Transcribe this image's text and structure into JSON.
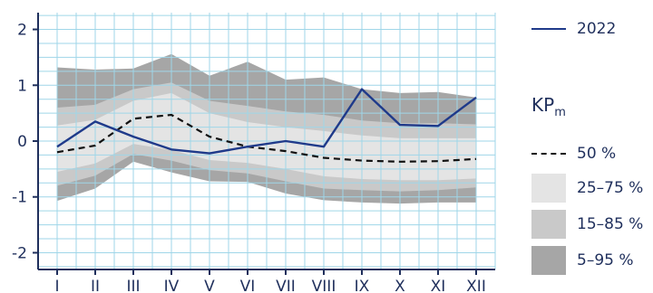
{
  "chart_data": {
    "type": "area",
    "categories": [
      "I",
      "II",
      "III",
      "IV",
      "V",
      "VI",
      "VII",
      "VIII",
      "IX",
      "X",
      "XI",
      "XII"
    ],
    "ylim": [
      -2.3,
      2.3
    ],
    "yticks": [
      "2",
      "1",
      "0",
      "-1",
      "-2"
    ],
    "ytick_values": [
      2,
      1,
      0,
      -1,
      -2
    ],
    "grid": true,
    "legend_placement": "right",
    "legend_title": "KP",
    "legend_title_sub": "m",
    "series": [
      {
        "name": "2022",
        "role": "line",
        "color": "#1f3a8a",
        "values": [
          -0.1,
          0.35,
          0.08,
          -0.15,
          -0.22,
          -0.1,
          0.0,
          -0.1,
          0.93,
          0.29,
          0.27,
          0.78
        ]
      },
      {
        "name": "50 %",
        "role": "median",
        "color": "#111111",
        "values": [
          -0.2,
          -0.08,
          0.4,
          0.47,
          0.08,
          -0.1,
          -0.18,
          -0.3,
          -0.35,
          -0.37,
          -0.36,
          -0.32
        ]
      }
    ],
    "bands": [
      {
        "name": "5–95 %",
        "color": "#a6a6a6",
        "upper": [
          1.32,
          1.28,
          1.3,
          1.56,
          1.17,
          1.42,
          1.1,
          1.14,
          0.93,
          0.86,
          0.88,
          0.78
        ],
        "lower": [
          -1.07,
          -0.85,
          -0.37,
          -0.56,
          -0.72,
          -0.73,
          -0.94,
          -1.06,
          -1.1,
          -1.12,
          -1.1,
          -1.1
        ]
      },
      {
        "name": "15–85 %",
        "color": "#c9c9c9",
        "upper": [
          0.6,
          0.65,
          0.93,
          1.05,
          0.72,
          0.63,
          0.53,
          0.47,
          0.37,
          0.32,
          0.32,
          0.3
        ],
        "lower": [
          -0.8,
          -0.62,
          -0.23,
          -0.35,
          -0.52,
          -0.58,
          -0.72,
          -0.85,
          -0.88,
          -0.9,
          -0.88,
          -0.83
        ]
      },
      {
        "name": "25–75 %",
        "color": "#e4e4e4",
        "upper": [
          0.28,
          0.38,
          0.72,
          0.86,
          0.5,
          0.34,
          0.25,
          0.18,
          0.1,
          0.05,
          0.05,
          0.05
        ],
        "lower": [
          -0.55,
          -0.4,
          -0.05,
          -0.16,
          -0.34,
          -0.39,
          -0.5,
          -0.63,
          -0.68,
          -0.7,
          -0.7,
          -0.67
        ]
      }
    ]
  },
  "legend": {
    "line_label": "2022",
    "title": "KP",
    "title_sub": "m",
    "median_label": "50 %",
    "band_inner_label": "25–75 %",
    "band_mid_label": "15–85 %",
    "band_outer_label": "5–95 %",
    "band_inner_color": "#e4e4e4",
    "band_mid_color": "#c9c9c9",
    "band_outer_color": "#a6a6a6"
  }
}
